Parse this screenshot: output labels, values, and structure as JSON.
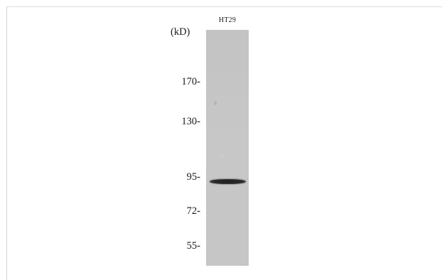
{
  "blot": {
    "lane_label": "HT29",
    "unit_label": "(kD)",
    "markers": [
      "170-",
      "130-",
      "95-",
      "72-",
      "55-"
    ],
    "band_description_color": "#222222",
    "lane_color": "#c5c5c5"
  }
}
